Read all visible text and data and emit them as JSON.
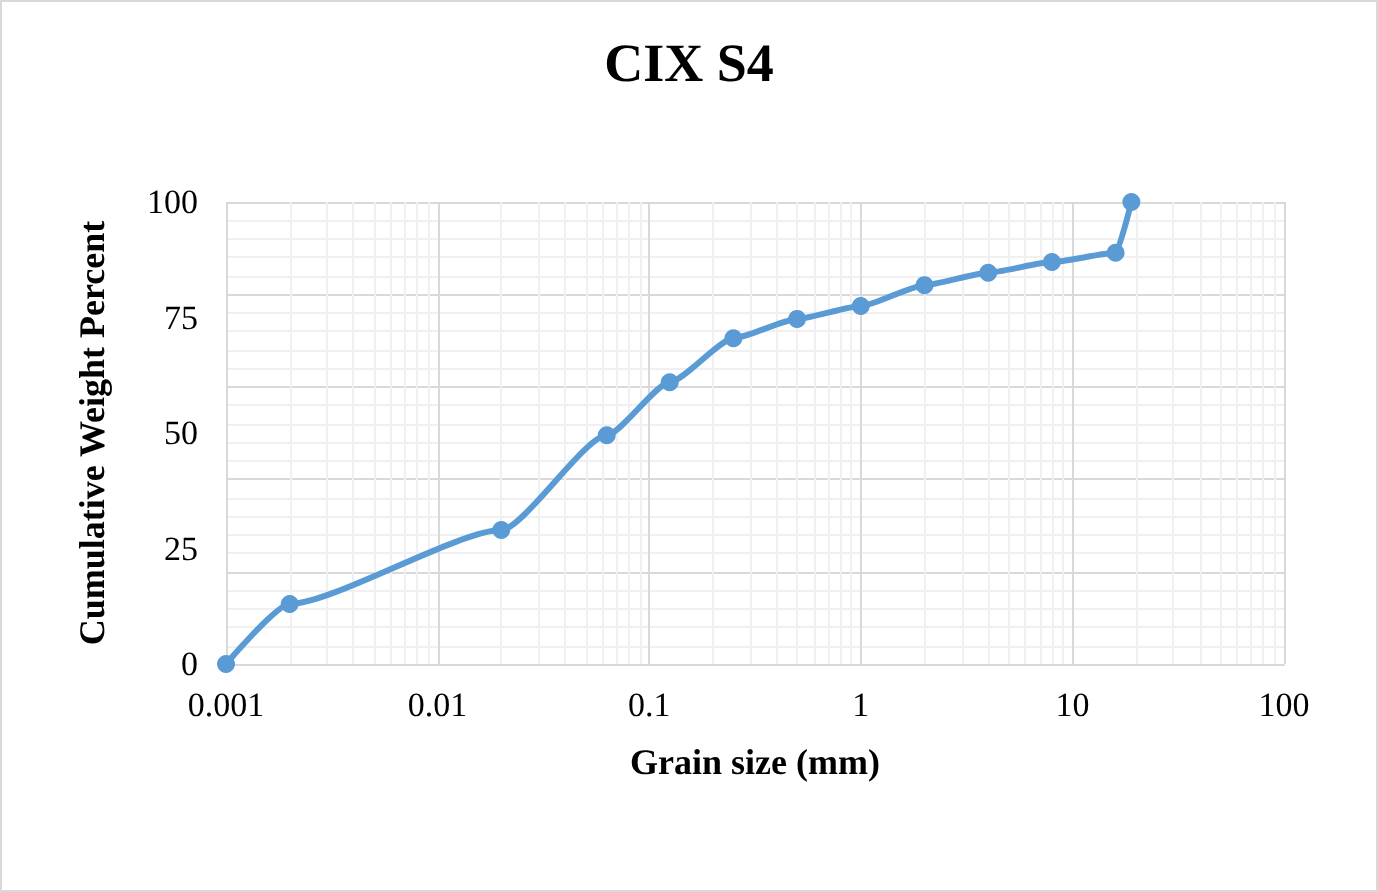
{
  "chart_data": {
    "type": "line",
    "title": "CIX S4",
    "xlabel": "Grain size (mm)",
    "ylabel": "Cumulative Weight Percent",
    "log": "x",
    "x": [
      0.001,
      0.002,
      0.02,
      0.063,
      0.125,
      0.25,
      0.5,
      1,
      2,
      4,
      8,
      16,
      19
    ],
    "series": [
      {
        "color": "#5b9bd5",
        "values": [
          0,
          13,
          29,
          49.5,
          61,
          70.5,
          74.7,
          77.5,
          82,
          84.7,
          87,
          89,
          100
        ]
      }
    ],
    "xlim": [
      0.001,
      100
    ],
    "xticks": [
      0.001,
      0.01,
      0.1,
      1,
      10,
      100
    ],
    "ylim": [
      0,
      100
    ],
    "yticks": [
      0,
      25,
      50,
      75,
      100
    ],
    "grid": true,
    "marker": "circle",
    "line_style": "solid"
  }
}
